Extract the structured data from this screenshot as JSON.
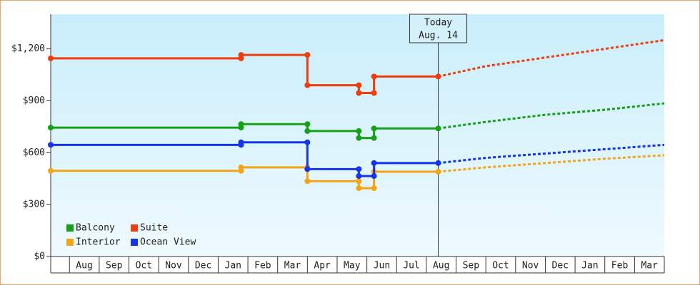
{
  "chart_data": {
    "type": "step-line",
    "xlim": [
      -0.63,
      20
    ],
    "xticks": [
      {
        "value": 0.5,
        "label": "Aug"
      },
      {
        "value": 1.5,
        "label": "Sep"
      },
      {
        "value": 2.5,
        "label": "Oct"
      },
      {
        "value": 3.5,
        "label": "Nov"
      },
      {
        "value": 4.5,
        "label": "Dec"
      },
      {
        "value": 5.5,
        "label": "Jan"
      },
      {
        "value": 6.5,
        "label": "Feb"
      },
      {
        "value": 7.5,
        "label": "Mar"
      },
      {
        "value": 8.5,
        "label": "Apr"
      },
      {
        "value": 9.5,
        "label": "May"
      },
      {
        "value": 10.5,
        "label": "Jun"
      },
      {
        "value": 11.5,
        "label": "Jul"
      },
      {
        "value": 12.5,
        "label": "Aug"
      },
      {
        "value": 13.5,
        "label": "Sep"
      },
      {
        "value": 14.5,
        "label": "Oct"
      },
      {
        "value": 15.5,
        "label": "Nov"
      },
      {
        "value": 16.5,
        "label": "Dec"
      },
      {
        "value": 17.5,
        "label": "Jan"
      },
      {
        "value": 18.5,
        "label": "Feb"
      },
      {
        "value": 19.5,
        "label": "Mar"
      }
    ],
    "ylim": [
      0,
      1400
    ],
    "yticks": [
      {
        "value": 0,
        "label": "$0"
      },
      {
        "value": 300,
        "label": "$300"
      },
      {
        "value": 600,
        "label": "$600"
      },
      {
        "value": 900,
        "label": "$900"
      },
      {
        "value": 1200,
        "label": "$1,200"
      }
    ],
    "legend": "lower left",
    "today": {
      "x": 12.4,
      "label": "Today",
      "date": "Aug. 14"
    },
    "series": [
      {
        "name": "Balcony",
        "color": "#16a016",
        "x": [
          -0.63,
          5.77,
          5.77,
          8.0,
          8.0,
          9.73,
          9.73,
          10.24,
          10.24,
          12.4
        ],
        "values": [
          745,
          745,
          765,
          765,
          725,
          725,
          685,
          685,
          740,
          740
        ],
        "forecast": {
          "x": [
            12.4,
            14,
            16,
            18,
            20
          ],
          "values": [
            740,
            778,
            819,
            848,
            885
          ]
        }
      },
      {
        "name": "Suite",
        "color": "#f03c0c",
        "x": [
          -0.63,
          5.77,
          5.77,
          8.0,
          8.0,
          9.73,
          9.73,
          10.24,
          10.24,
          12.4
        ],
        "values": [
          1145,
          1145,
          1165,
          1165,
          990,
          990,
          945,
          945,
          1040,
          1040
        ],
        "forecast": {
          "x": [
            12.4,
            14,
            16,
            18,
            20
          ],
          "values": [
            1040,
            1100,
            1150,
            1200,
            1250
          ]
        }
      },
      {
        "name": "Interior",
        "color": "#f5a416",
        "x": [
          -0.63,
          5.77,
          5.77,
          8.0,
          8.0,
          9.73,
          9.73,
          10.24,
          10.24,
          12.4
        ],
        "values": [
          495,
          495,
          515,
          515,
          435,
          435,
          395,
          395,
          490,
          490
        ],
        "forecast": {
          "x": [
            12.4,
            14,
            16,
            18,
            20
          ],
          "values": [
            490,
            515,
            540,
            565,
            585
          ]
        }
      },
      {
        "name": "Ocean View",
        "color": "#1434f0",
        "x": [
          -0.63,
          5.77,
          5.77,
          8.0,
          8.0,
          9.73,
          9.73,
          10.24,
          10.24,
          12.4
        ],
        "values": [
          645,
          645,
          660,
          660,
          505,
          505,
          465,
          465,
          540,
          540
        ],
        "forecast": {
          "x": [
            12.4,
            14,
            16,
            18,
            20
          ],
          "values": [
            540,
            570,
            595,
            620,
            645
          ]
        }
      }
    ]
  }
}
